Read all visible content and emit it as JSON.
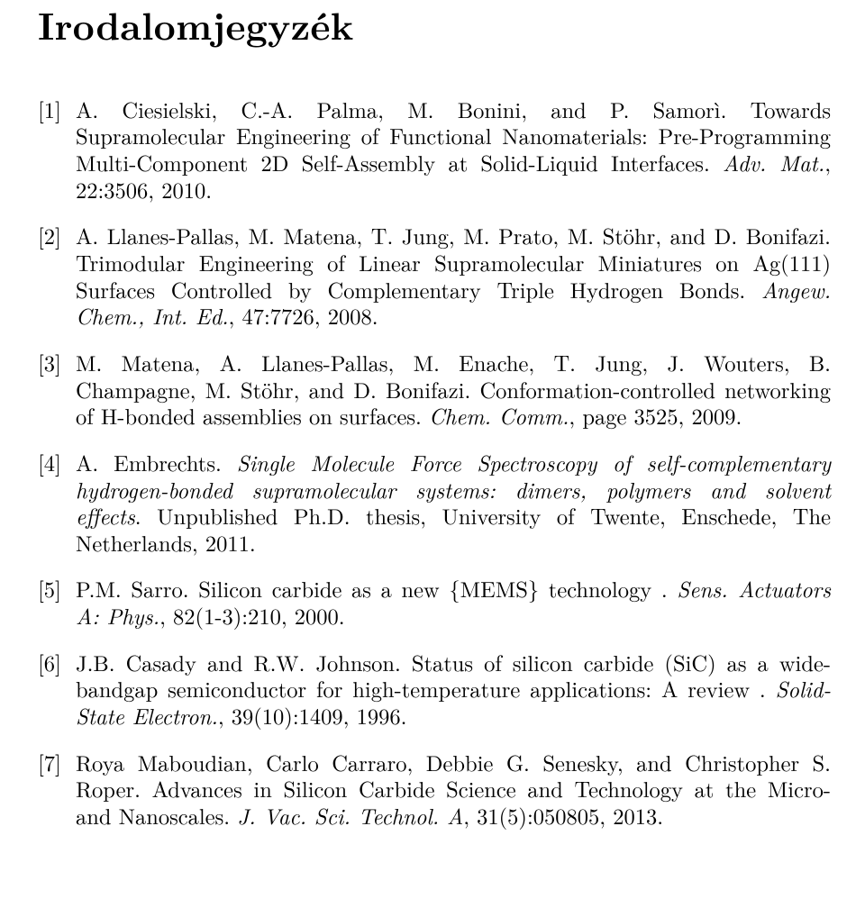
{
  "heading": "Irodalomjegyzék",
  "entries": [
    {
      "num": "[1]",
      "authors": "A. Ciesielski, C.-A. Palma, M. Bonini, and P. Samorì. ",
      "title_plain": "Towards Supramolecular Engineering of Functional Nanomaterials: Pre-Programming Multi-Component 2D Self-Assembly at Solid-Liquid Interfaces. ",
      "journal": "Adv. Mat.",
      "tail": ", 22:3506, 2010."
    },
    {
      "num": "[2]",
      "authors": "A. Llanes-Pallas, M. Matena, T. Jung, M. Prato, M. Stöhr, and D. Bonifazi. ",
      "title_plain": "Trimodular Engineering of Linear Supramolecular Miniatures on Ag(111) Surfaces Controlled by Complementary Triple Hydrogen Bonds. ",
      "journal": "Angew. Chem., Int. Ed.",
      "tail": ", 47:7726, 2008."
    },
    {
      "num": "[3]",
      "authors": "M. Matena, A. Llanes-Pallas, M. Enache, T. Jung, J. Wouters, B. Champagne, M. Stöhr, and D. Bonifazi. ",
      "title_plain": "Conformation-controlled networking of H-bonded assemblies on surfaces. ",
      "journal": "Chem. Comm.",
      "tail": ", page 3525, 2009."
    },
    {
      "num": "[4]",
      "authors": "A. Embrechts. ",
      "title_italic": "Single Molecule Force Spectroscopy of self-complementary hydrogen-bonded supramolecular systems: dimers, polymers and solvent effects",
      "tail_plain": ". Unpublished Ph.D. thesis, University of Twente, Enschede, The Netherlands, 2011."
    },
    {
      "num": "[5]",
      "authors": "P.M. Sarro. ",
      "title_plain": "Silicon carbide as a new {MEMS} technology . ",
      "journal": "Sens. Actuators A: Phys.",
      "tail": ", 82(1-3):210, 2000."
    },
    {
      "num": "[6]",
      "authors": "J.B. Casady and R.W. Johnson. ",
      "title_plain": "Status of silicon carbide (SiC) as a wide-bandgap semiconductor for high-temperature applications: A review . ",
      "journal": "Solid-State Electron.",
      "tail": ", 39(10):1409, 1996."
    },
    {
      "num": "[7]",
      "authors": "Roya Maboudian, Carlo Carraro, Debbie G. Senesky, and Christopher S. Roper. ",
      "title_plain": "Advances in Silicon Carbide Science and Technology at the Micro- and Nanoscales. ",
      "journal": "J. Vac. Sci. Technol. A",
      "tail": ", 31(5):050805, 2013."
    }
  ]
}
